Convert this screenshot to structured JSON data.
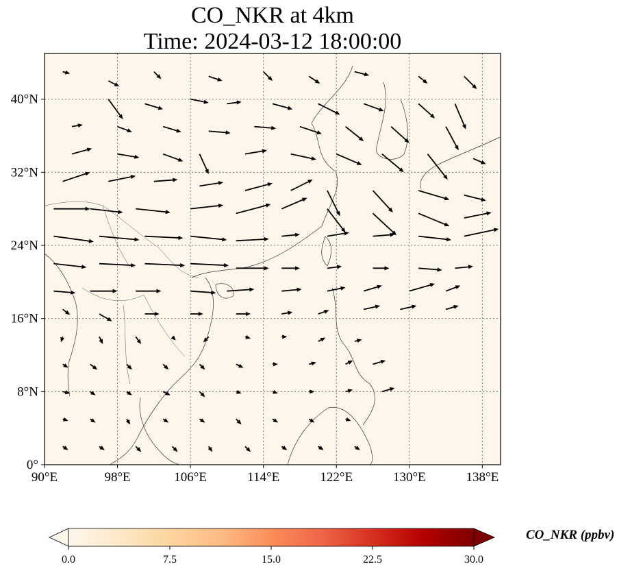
{
  "title": {
    "line1": "CO_NKR at 4km",
    "line2": "Time: 2024-03-12 18:00:00"
  },
  "map": {
    "lon_range": [
      90,
      140
    ],
    "lat_range": [
      0,
      45
    ],
    "x_ticks": [
      "90°E",
      "98°E",
      "106°E",
      "114°E",
      "122°E",
      "130°E",
      "138°E"
    ],
    "y_ticks": [
      "0°",
      "8°N",
      "16°N",
      "24°N",
      "32°N",
      "40°N"
    ],
    "x_tick_values": [
      90,
      98,
      106,
      114,
      122,
      130,
      138
    ],
    "y_tick_values": [
      0,
      8,
      16,
      24,
      32,
      40
    ],
    "gridlines": true,
    "field_color": "#fef6ea",
    "frame_color": "#000000"
  },
  "colorbar": {
    "label": "CO_NKR (ppbv)",
    "ticks": [
      "0.0",
      "7.5",
      "15.0",
      "22.5",
      "30.0"
    ],
    "min": 0,
    "max": 30,
    "extend": "both",
    "colormap": "OrRd",
    "stops": [
      "#fff7ec",
      "#fee8c8",
      "#fdd49e",
      "#fdbb84",
      "#fc8d59",
      "#ef6548",
      "#d7301f",
      "#b30000",
      "#7f0000"
    ]
  },
  "wind": {
    "note_units": "",
    "vectors": [
      [
        92,
        43,
        0.8,
        -0.2
      ],
      [
        97,
        42,
        1.2,
        -0.6
      ],
      [
        102,
        43,
        0.8,
        -0.8
      ],
      [
        108,
        42.5,
        1.5,
        -0.5
      ],
      [
        114,
        43,
        1.0,
        -1.0
      ],
      [
        119,
        42.5,
        1.2,
        -0.8
      ],
      [
        124,
        43,
        1.6,
        -0.4
      ],
      [
        131,
        42.5,
        1.0,
        -0.8
      ],
      [
        136,
        42.5,
        1.4,
        -1.4
      ],
      [
        97,
        40,
        1.6,
        -2.2
      ],
      [
        101,
        39.5,
        2.0,
        -0.6
      ],
      [
        106,
        40,
        2.0,
        -0.4
      ],
      [
        110,
        39.5,
        1.6,
        0.2
      ],
      [
        115,
        39.5,
        2.2,
        -0.6
      ],
      [
        120,
        39.5,
        2.4,
        -1.2
      ],
      [
        125,
        39.5,
        2.2,
        -0.8
      ],
      [
        131,
        39.5,
        1.8,
        -1.6
      ],
      [
        135,
        39.5,
        1.2,
        -2.8
      ],
      [
        93,
        37,
        1.2,
        0.2
      ],
      [
        98,
        37,
        1.6,
        -0.6
      ],
      [
        103,
        37,
        2.0,
        -0.6
      ],
      [
        108,
        36.5,
        2.4,
        -0.2
      ],
      [
        113,
        37,
        2.4,
        -0.2
      ],
      [
        118,
        37,
        2.4,
        -0.8
      ],
      [
        123,
        37,
        2.0,
        -1.6
      ],
      [
        128,
        37,
        2.0,
        -1.8
      ],
      [
        134,
        37,
        1.4,
        -2.6
      ],
      [
        93,
        34,
        2.2,
        0.6
      ],
      [
        98,
        34,
        2.4,
        -0.4
      ],
      [
        103,
        34,
        2.2,
        -0.8
      ],
      [
        107,
        34,
        1.0,
        -2.2
      ],
      [
        112,
        34,
        2.4,
        0.4
      ],
      [
        117,
        34,
        2.8,
        -0.6
      ],
      [
        122,
        34,
        2.8,
        -1.2
      ],
      [
        127,
        34,
        2.4,
        -2.0
      ],
      [
        132,
        34,
        2.2,
        -2.8
      ],
      [
        137,
        33.5,
        1.4,
        -0.6
      ],
      [
        92,
        31,
        3.0,
        1.0
      ],
      [
        97,
        31,
        3.0,
        0.6
      ],
      [
        102,
        31,
        2.6,
        0.2
      ],
      [
        107,
        30.5,
        2.6,
        0.4
      ],
      [
        112,
        30,
        3.0,
        0.8
      ],
      [
        117,
        30,
        2.4,
        1.2
      ],
      [
        121,
        30,
        1.4,
        -2.8
      ],
      [
        126,
        30,
        2.2,
        -2.4
      ],
      [
        131,
        30,
        3.4,
        -1.0
      ],
      [
        136,
        29.5,
        2.4,
        -0.6
      ],
      [
        91,
        28,
        4.0,
        0.0
      ],
      [
        95,
        28,
        3.6,
        -0.4
      ],
      [
        100,
        28,
        3.8,
        -0.4
      ],
      [
        106,
        28,
        3.6,
        0.4
      ],
      [
        111,
        27.5,
        3.8,
        1.0
      ],
      [
        116,
        28,
        2.8,
        1.2
      ],
      [
        121,
        28,
        2.0,
        -2.6
      ],
      [
        126,
        27.5,
        2.6,
        -2.4
      ],
      [
        131,
        27.5,
        3.4,
        -1.4
      ],
      [
        136,
        27,
        3.0,
        0.6
      ],
      [
        91,
        25,
        4.4,
        -0.6
      ],
      [
        96,
        25,
        4.4,
        -0.4
      ],
      [
        101,
        25,
        4.2,
        -0.2
      ],
      [
        106,
        25,
        4.0,
        -0.4
      ],
      [
        111,
        24.5,
        3.6,
        0.2
      ],
      [
        116,
        25,
        2.0,
        0.2
      ],
      [
        121,
        25,
        2.4,
        0.4
      ],
      [
        126,
        25,
        2.4,
        0.2
      ],
      [
        131,
        25,
        3.6,
        -0.4
      ],
      [
        136,
        25,
        3.8,
        0.8
      ],
      [
        91,
        22,
        3.6,
        -0.4
      ],
      [
        96,
        22,
        4.0,
        -0.2
      ],
      [
        101,
        22,
        4.4,
        -0.2
      ],
      [
        106,
        22,
        4.2,
        -0.2
      ],
      [
        111,
        21.5,
        3.6,
        0.0
      ],
      [
        116,
        21.5,
        2.0,
        0.0
      ],
      [
        121,
        21.5,
        1.6,
        0.2
      ],
      [
        126,
        21.5,
        1.8,
        0.0
      ],
      [
        131,
        21.5,
        2.6,
        -0.2
      ],
      [
        135,
        21.5,
        2.0,
        0.2
      ],
      [
        91,
        19,
        2.4,
        -0.2
      ],
      [
        95,
        19,
        3.0,
        0.0
      ],
      [
        100,
        19,
        2.8,
        0.0
      ],
      [
        106,
        19,
        2.8,
        -0.2
      ],
      [
        110,
        19,
        3.0,
        0.2
      ],
      [
        116,
        19,
        2.2,
        0.2
      ],
      [
        121,
        19,
        2.0,
        0.4
      ],
      [
        125,
        19,
        2.0,
        0.6
      ],
      [
        130,
        19,
        2.8,
        0.8
      ],
      [
        134,
        19,
        1.6,
        0.6
      ],
      [
        92,
        17,
        0.8,
        -0.6
      ],
      [
        96,
        16.5,
        1.4,
        -0.8
      ],
      [
        101,
        16.5,
        1.6,
        0.0
      ],
      [
        106,
        16.5,
        1.4,
        0.0
      ],
      [
        111,
        16.5,
        1.6,
        0.0
      ],
      [
        116,
        16.5,
        1.2,
        0.2
      ],
      [
        120,
        16.5,
        1.2,
        0.4
      ],
      [
        125,
        17,
        1.8,
        0.4
      ],
      [
        129,
        17,
        1.8,
        0.4
      ],
      [
        134,
        17,
        1.4,
        0.4
      ],
      [
        92,
        14,
        -0.2,
        -0.6
      ],
      [
        96,
        14,
        0.4,
        -0.8
      ],
      [
        100,
        14,
        0.6,
        -0.8
      ],
      [
        104,
        14,
        0.4,
        -0.4
      ],
      [
        108,
        14,
        -0.6,
        -0.6
      ],
      [
        112,
        14,
        0.6,
        -0.2
      ],
      [
        116,
        14,
        0.6,
        0.0
      ],
      [
        120,
        13.5,
        0.8,
        0.4
      ],
      [
        124,
        13.5,
        0.8,
        0.2
      ],
      [
        92,
        11,
        0.6,
        -0.4
      ],
      [
        95,
        11,
        0.8,
        -0.6
      ],
      [
        99,
        11,
        0.6,
        -0.6
      ],
      [
        103,
        11,
        0.6,
        -0.6
      ],
      [
        107,
        11,
        0.6,
        -0.6
      ],
      [
        111,
        11,
        0.8,
        -0.4
      ],
      [
        115,
        11,
        0.6,
        0.0
      ],
      [
        119,
        11,
        0.8,
        0.2
      ],
      [
        123,
        11,
        0.8,
        0.4
      ],
      [
        126,
        11,
        1.4,
        0.4
      ],
      [
        92,
        8,
        0.8,
        -0.2
      ],
      [
        95,
        8,
        0.6,
        -0.4
      ],
      [
        99,
        8,
        0.6,
        -0.4
      ],
      [
        103,
        8,
        0.8,
        -0.4
      ],
      [
        107,
        8,
        0.6,
        -0.6
      ],
      [
        111,
        8,
        0.6,
        -0.2
      ],
      [
        115,
        8,
        0.6,
        -0.2
      ],
      [
        119,
        8,
        0.6,
        0.0
      ],
      [
        123,
        8,
        0.8,
        0.2
      ],
      [
        127,
        8,
        1.4,
        0.4
      ],
      [
        92,
        5,
        0.6,
        -0.2
      ],
      [
        95,
        5,
        0.6,
        -0.4
      ],
      [
        99,
        5,
        0.4,
        -0.6
      ],
      [
        103,
        5,
        0.6,
        -0.4
      ],
      [
        107,
        5,
        0.6,
        -0.4
      ],
      [
        111,
        5,
        0.6,
        -0.6
      ],
      [
        115,
        5,
        0.6,
        -0.4
      ],
      [
        119,
        5,
        0.6,
        -0.4
      ],
      [
        123,
        5,
        0.6,
        -0.2
      ],
      [
        92,
        2,
        0.6,
        -0.4
      ],
      [
        96,
        2,
        0.6,
        -0.4
      ],
      [
        100,
        2,
        0.6,
        -0.6
      ],
      [
        104,
        2,
        0.6,
        -0.6
      ],
      [
        108,
        2,
        0.4,
        -0.6
      ],
      [
        112,
        2,
        0.6,
        -0.6
      ],
      [
        116,
        2,
        0.6,
        -0.4
      ],
      [
        120,
        2,
        0.6,
        -0.4
      ],
      [
        124,
        2,
        0.6,
        -0.4
      ]
    ]
  }
}
